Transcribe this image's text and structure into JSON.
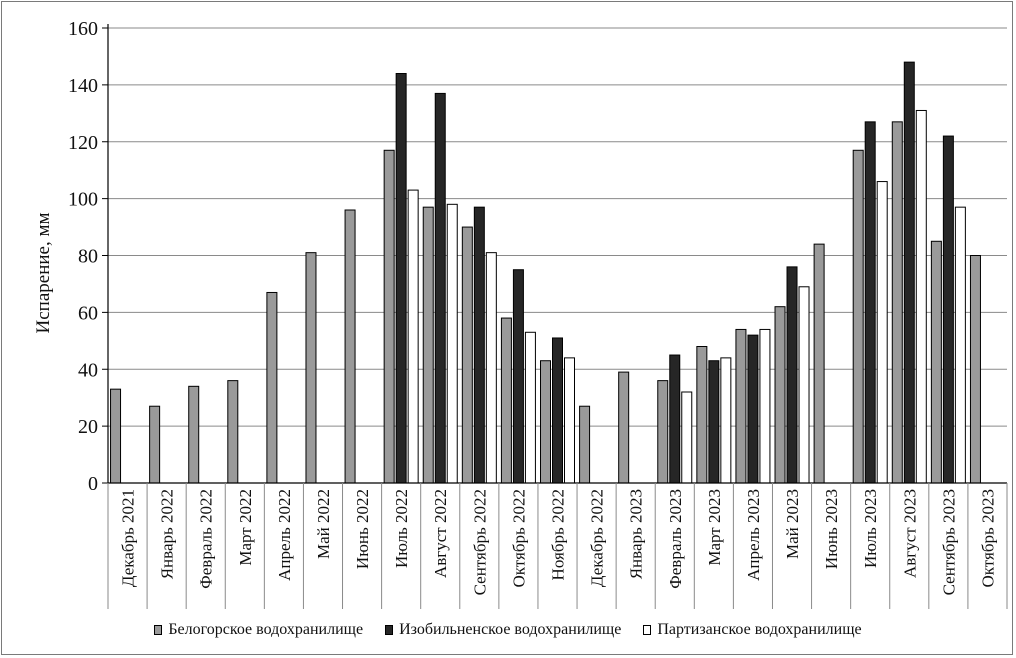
{
  "chart_data": {
    "type": "bar",
    "ylabel": "Испарение, мм",
    "xlabel": "",
    "ylim": [
      0,
      160
    ],
    "yticks": [
      0,
      20,
      40,
      60,
      80,
      100,
      120,
      140,
      160
    ],
    "grid": "horizontal",
    "legend_position": "bottom",
    "categories": [
      "Декабрь 2021",
      "Январь 2022",
      "Февраль 2022",
      "Март 2022",
      "Апрель 2022",
      "Май 2022",
      "Июнь 2022",
      "Июль 2022",
      "Август 2022",
      "Сентябрь 2022",
      "Октябрь 2022",
      "Ноябрь 2022",
      "Декабрь 2022",
      "Январь 2023",
      "Февраль 2023",
      "Март 2023",
      "Апрель 2023",
      "Май 2023",
      "Июнь 2023",
      "Июль 2023",
      "Август 2023",
      "Сентябрь 2023",
      "Октябрь 2023"
    ],
    "series": [
      {
        "name": "Белогорское водохранилище",
        "color": "#9a9a9a",
        "values": [
          33,
          27,
          34,
          36,
          67,
          81,
          96,
          117,
          97,
          90,
          58,
          43,
          27,
          39,
          36,
          48,
          54,
          62,
          84,
          117,
          127,
          85,
          80
        ]
      },
      {
        "name": "Изобильненское водохранилище",
        "color": "#262626",
        "values": [
          null,
          null,
          null,
          null,
          null,
          null,
          null,
          144,
          137,
          97,
          75,
          51,
          null,
          null,
          45,
          43,
          52,
          76,
          null,
          127,
          148,
          122,
          null
        ]
      },
      {
        "name": "Партизанское водохранилище",
        "color": "#ffffff",
        "values": [
          null,
          null,
          null,
          null,
          null,
          null,
          null,
          103,
          98,
          81,
          53,
          44,
          null,
          null,
          32,
          44,
          54,
          69,
          null,
          106,
          131,
          97,
          null
        ]
      }
    ]
  }
}
